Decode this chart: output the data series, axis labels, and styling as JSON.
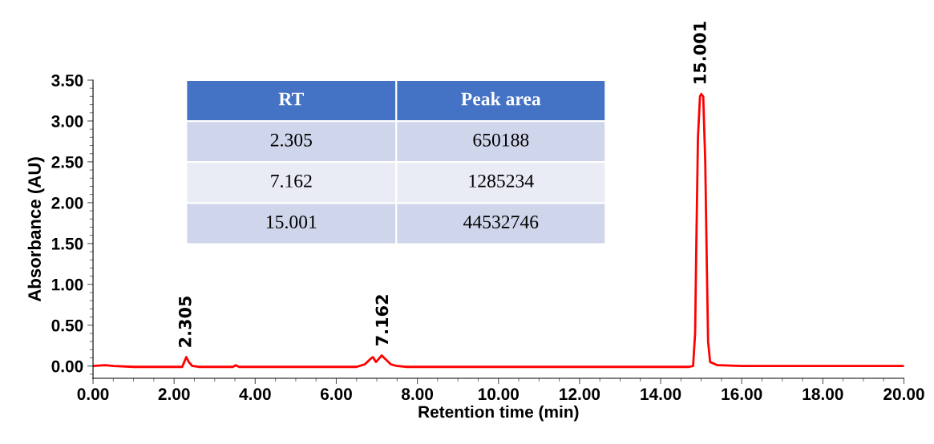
{
  "chart_data": {
    "type": "line",
    "xlabel": "Retention time (min)",
    "ylabel": "Absorbance (AU)",
    "xlim": [
      0,
      20
    ],
    "ylim": [
      -0.15,
      3.5
    ],
    "xticks": [
      {
        "value": 0,
        "label": "0.00"
      },
      {
        "value": 2,
        "label": "2.00"
      },
      {
        "value": 4,
        "label": "4.00"
      },
      {
        "value": 6,
        "label": "6.00"
      },
      {
        "value": 8,
        "label": "8.00"
      },
      {
        "value": 10,
        "label": "10.00"
      },
      {
        "value": 12,
        "label": "12.00"
      },
      {
        "value": 14,
        "label": "14.00"
      },
      {
        "value": 16,
        "label": "16.00"
      },
      {
        "value": 18,
        "label": "18.00"
      },
      {
        "value": 20,
        "label": "20.00"
      }
    ],
    "yticks": [
      {
        "value": 0,
        "label": "0.00"
      },
      {
        "value": 0.5,
        "label": "0.50"
      },
      {
        "value": 1,
        "label": "1.00"
      },
      {
        "value": 1.5,
        "label": "1.50"
      },
      {
        "value": 2,
        "label": "2.00"
      },
      {
        "value": 2.5,
        "label": "2.50"
      },
      {
        "value": 3,
        "label": "3.00"
      },
      {
        "value": 3.5,
        "label": "3.50"
      }
    ],
    "grid": false,
    "legend": false,
    "marker": "none",
    "line_style": "solid",
    "series": [
      {
        "color": "#ff0000",
        "x": [
          0,
          0.3,
          0.5,
          1.0,
          2.0,
          2.2,
          2.25,
          2.3,
          2.36,
          2.45,
          2.6,
          3.45,
          3.52,
          3.6,
          6.5,
          6.7,
          6.85,
          6.9,
          6.98,
          7.05,
          7.12,
          7.2,
          7.35,
          7.5,
          7.7,
          14.7,
          14.8,
          14.85,
          14.88,
          14.92,
          14.97,
          15.0,
          15.05,
          15.1,
          15.14,
          15.17,
          15.22,
          15.4,
          16.0,
          18.0,
          20.0
        ],
        "values": [
          0.0,
          0.01,
          0.0,
          -0.01,
          -0.01,
          -0.01,
          0.05,
          0.11,
          0.05,
          0.0,
          -0.01,
          -0.01,
          0.01,
          -0.01,
          -0.01,
          0.02,
          0.09,
          0.11,
          0.05,
          0.09,
          0.13,
          0.09,
          0.02,
          0.0,
          -0.01,
          -0.01,
          0.0,
          0.4,
          1.5,
          2.8,
          3.3,
          3.33,
          3.3,
          2.5,
          1.2,
          0.3,
          0.05,
          0.01,
          0.0,
          0.0,
          0.0
        ]
      }
    ],
    "annotations": [
      {
        "text": "2.305",
        "x": 2.305,
        "y": 0.11
      },
      {
        "text": "7.162",
        "x": 7.162,
        "y": 0.13
      },
      {
        "text": "15.001",
        "x": 15.001,
        "y": 3.33
      },
      "RT",
      "Peak area",
      "2.305",
      "650188",
      "7.162",
      "1285234",
      "15.001",
      "44532746"
    ]
  }
}
